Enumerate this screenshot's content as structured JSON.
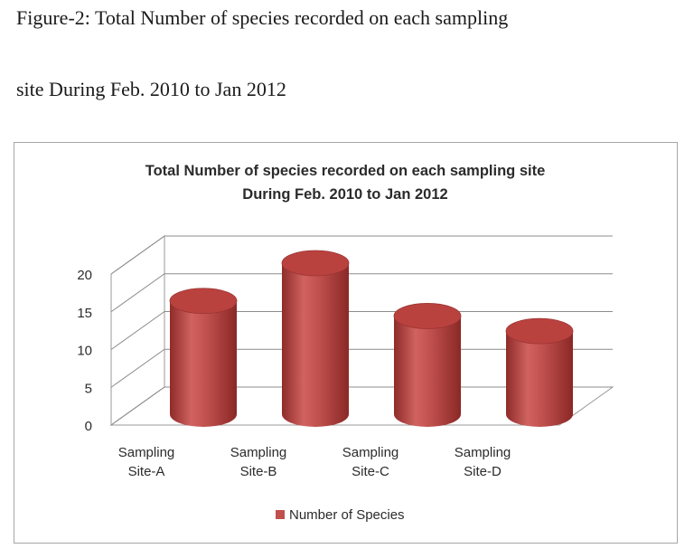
{
  "caption": {
    "line1": "Figure-2: Total Number of species recorded on each sampling",
    "line2": "site During Feb. 2010 to Jan 2012"
  },
  "chart_data": {
    "type": "bar",
    "style": "3d-cylinder",
    "title_lines": [
      "Total Number of species recorded on each sampling site",
      "During Feb. 2010  to Jan 2012"
    ],
    "categories": [
      [
        "Sampling",
        "Site-A"
      ],
      [
        "Sampling",
        "Site-B"
      ],
      [
        "Sampling",
        "Site-C"
      ],
      [
        "Sampling",
        "Site-D"
      ]
    ],
    "series": [
      {
        "name": "Number of Species",
        "values": [
          15,
          20,
          13,
          11
        ],
        "color": "#c0504d"
      }
    ],
    "ylim": [
      0,
      20
    ],
    "yticks": [
      0,
      5,
      10,
      15,
      20
    ],
    "grid": true,
    "legend": "bottom"
  }
}
